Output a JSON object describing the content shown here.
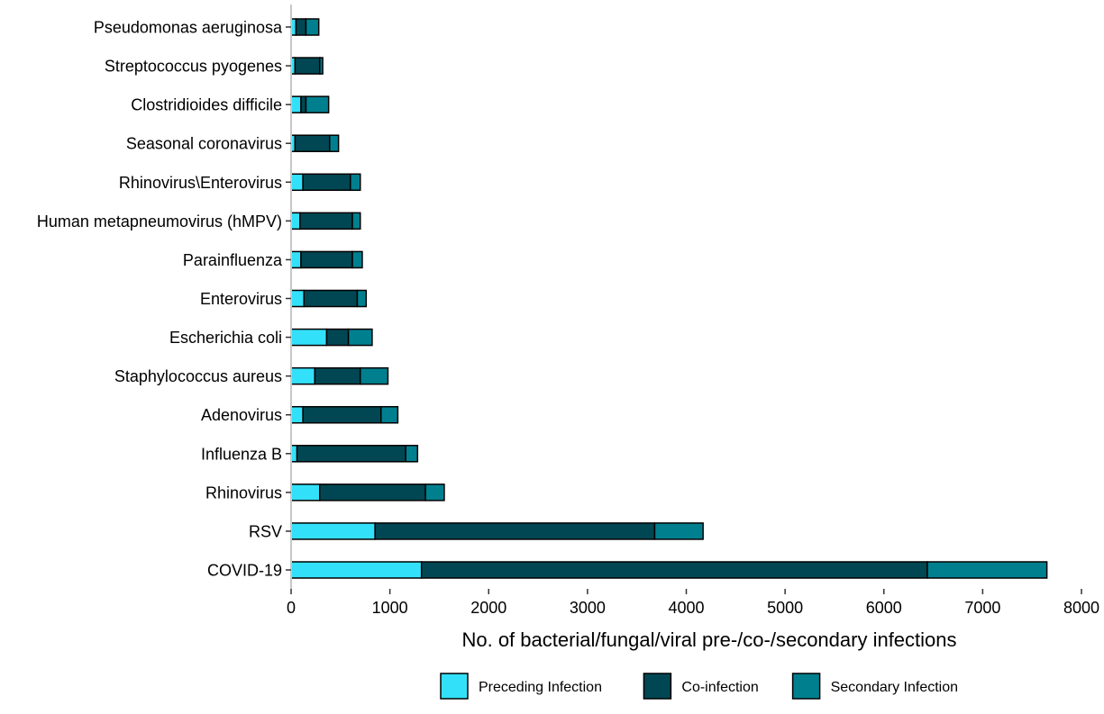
{
  "chart_data": {
    "type": "bar",
    "orientation": "horizontal",
    "stacked": true,
    "categories": [
      "Pseudomonas aeruginosa",
      "Streptococcus pyogenes",
      "Clostridioides difficile",
      "Seasonal coronavirus",
      "Rhinovirus\\Enterovirus",
      "Human metapneumovirus (hMPV)",
      "Parainfluenza",
      "Enterovirus",
      "Escherichia coli",
      "Staphylococcus aureus",
      "Adenovirus",
      "Influenza B",
      "Rhinovirus",
      "RSV",
      "COVID-19"
    ],
    "series": [
      {
        "name": "Preceding Infection",
        "color": "#33E0F9",
        "values": [
          50,
          40,
          100,
          40,
          120,
          90,
          100,
          130,
          360,
          240,
          120,
          60,
          290,
          850,
          1320
        ]
      },
      {
        "name": "Co-infection",
        "color": "#004753",
        "values": [
          100,
          250,
          50,
          350,
          480,
          530,
          520,
          540,
          220,
          460,
          790,
          1100,
          1070,
          2830,
          5120
        ]
      },
      {
        "name": "Secondary Infection",
        "color": "#00808F",
        "values": [
          130,
          30,
          230,
          90,
          100,
          80,
          100,
          90,
          240,
          280,
          170,
          120,
          190,
          490,
          1210
        ]
      }
    ],
    "xlabel": "No. of bacterial/fungal/viral pre-/co-/secondary infections",
    "ylabel": "",
    "xlim": [
      0,
      8000
    ],
    "xticks": [
      "0",
      "1000",
      "2000",
      "3000",
      "4000",
      "5000",
      "6000",
      "7000",
      "8000"
    ],
    "grid": false,
    "legend": "bottom"
  }
}
